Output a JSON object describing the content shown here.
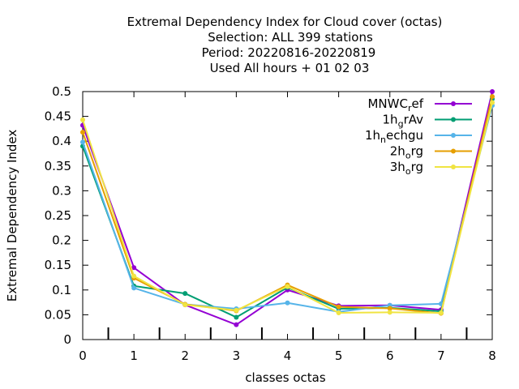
{
  "chart_data": {
    "type": "line",
    "title_lines": [
      "Extremal Dependency Index  for Cloud cover (octas)",
      "Selection: ALL     399 stations",
      "Period: 20220816-20220819",
      "Used  All hours  + 01 02 03"
    ],
    "xlabel": "classes octas",
    "ylabel": "Extremal Dependency Index",
    "xlim": [
      0,
      8
    ],
    "ylim": [
      0,
      0.5
    ],
    "xticks": [
      0,
      1,
      2,
      3,
      4,
      5,
      6,
      7,
      8
    ],
    "yticks": [
      0,
      0.05,
      0.1,
      0.15,
      0.2,
      0.25,
      0.3,
      0.35,
      0.4,
      0.45,
      0.5
    ],
    "ytick_labels": [
      "0",
      "0.05",
      "0.1",
      "0.15",
      "0.2",
      "0.25",
      "0.3",
      "0.35",
      "0.4",
      "0.45",
      "0.5"
    ],
    "grid": false,
    "legend_position": "top-right",
    "x": [
      0,
      1,
      2,
      3,
      4,
      5,
      6,
      7,
      8
    ],
    "series": [
      {
        "name": "MNWC_ref",
        "legend_main": "MNWC",
        "legend_sub": "r",
        "legend_rest": "ef",
        "color": "#9400d3",
        "values": [
          0.432,
          0.145,
          0.07,
          0.03,
          0.1,
          0.068,
          0.069,
          0.06,
          0.5
        ]
      },
      {
        "name": "1h_grAv",
        "legend_main": "1h",
        "legend_sub": "g",
        "legend_rest": "rAv",
        "color": "#009e73",
        "values": [
          0.39,
          0.108,
          0.093,
          0.045,
          0.105,
          0.062,
          0.064,
          0.057,
          0.485
        ]
      },
      {
        "name": "1h_nechgu",
        "legend_main": "1h",
        "legend_sub": "n",
        "legend_rest": "echgu",
        "color": "#56b4e9",
        "values": [
          0.398,
          0.104,
          0.071,
          0.062,
          0.074,
          0.056,
          0.069,
          0.072,
          0.472
        ]
      },
      {
        "name": "2h_org",
        "legend_main": "2h",
        "legend_sub": "o",
        "legend_rest": "rg",
        "color": "#e69f00",
        "values": [
          0.418,
          0.124,
          0.071,
          0.058,
          0.11,
          0.066,
          0.063,
          0.053,
          0.49
        ]
      },
      {
        "name": "3h_org",
        "legend_main": "3h",
        "legend_sub": "o",
        "legend_rest": "rg",
        "color": "#f0e442",
        "values": [
          0.443,
          0.128,
          0.07,
          0.059,
          0.107,
          0.054,
          0.055,
          0.054,
          0.478
        ]
      }
    ]
  }
}
